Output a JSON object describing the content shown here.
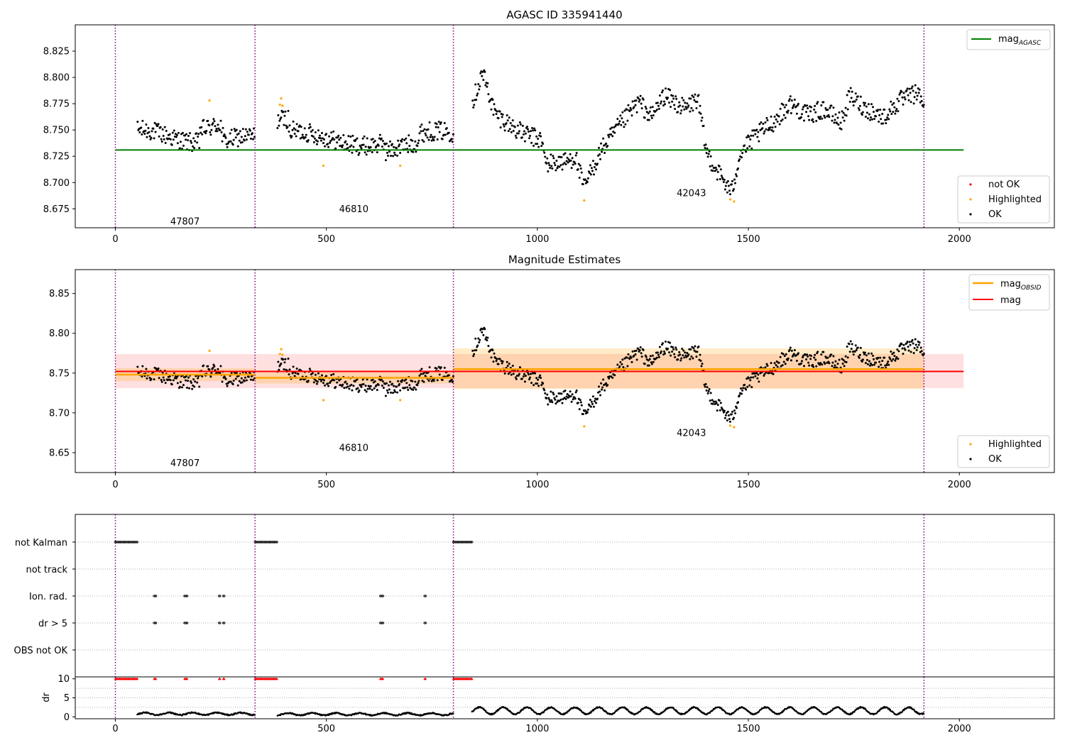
{
  "chart_data": [
    {
      "type": "scatter",
      "title": "AGASC ID 335941440",
      "xlabel": "",
      "ylabel": "",
      "xlim": [
        -95,
        2225
      ],
      "ylim": [
        8.657,
        8.85
      ],
      "xticks": [
        0,
        500,
        1000,
        1500,
        2000
      ],
      "yticks": [
        8.675,
        8.7,
        8.725,
        8.75,
        8.775,
        8.8,
        8.825
      ],
      "ytick_labels": [
        "8.675",
        "8.700",
        "8.725",
        "8.750",
        "8.775",
        "8.800",
        "8.825"
      ],
      "mag_agasc": 8.731,
      "mag_agasc_range": [
        0,
        2010
      ],
      "obsid_boundaries": [
        0,
        331,
        801,
        1916
      ],
      "obsids": [
        {
          "label": "47807",
          "x": 165,
          "y": 8.66
        },
        {
          "label": "46810",
          "x": 565,
          "y": 8.672
        },
        {
          "label": "42043",
          "x": 1365,
          "y": 8.687
        }
      ],
      "series": [
        {
          "name": "mag_AGASC",
          "color": "#008000",
          "type": "line"
        },
        {
          "name": "not OK",
          "color": "#ff0000",
          "type": "scatter"
        },
        {
          "name": "Highlighted",
          "color": "#ffa500",
          "type": "scatter"
        },
        {
          "name": "OK",
          "color": "#000000",
          "type": "scatter"
        }
      ],
      "legend_lines": {
        "main": "mag",
        "sub": "AGASC"
      },
      "legend_points": [
        "not OK",
        "Highlighted",
        "OK"
      ],
      "highlighted_points": [
        [
          223,
          8.778
        ],
        [
          390,
          8.774
        ],
        [
          393,
          8.78
        ],
        [
          396,
          8.773
        ],
        [
          493,
          8.716
        ],
        [
          675,
          8.716
        ],
        [
          1111,
          8.683
        ],
        [
          1457,
          8.684
        ],
        [
          1466,
          8.682
        ]
      ]
    },
    {
      "type": "scatter",
      "title": "Magnitude Estimates",
      "xlabel": "",
      "ylabel": "",
      "xlim": [
        -95,
        2225
      ],
      "ylim": [
        8.625,
        8.88
      ],
      "xticks": [
        0,
        500,
        1000,
        1500,
        2000
      ],
      "yticks": [
        8.65,
        8.7,
        8.75,
        8.8,
        8.85
      ],
      "ytick_labels": [
        "8.65",
        "8.70",
        "8.75",
        "8.80",
        "8.85"
      ],
      "mag": 8.752,
      "mag_band": [
        8.731,
        8.774
      ],
      "mag_range": [
        0,
        2010
      ],
      "mag_obsid": [
        {
          "x0": 0,
          "x1": 331,
          "value": 8.748,
          "band": [
            8.74,
            8.756
          ]
        },
        {
          "x0": 331,
          "x1": 801,
          "value": 8.744,
          "band": [
            8.737,
            8.751
          ]
        },
        {
          "x0": 801,
          "x1": 1916,
          "value": 8.755,
          "band": [
            8.73,
            8.781
          ]
        }
      ],
      "obsid_boundaries": [
        0,
        331,
        801,
        1916
      ],
      "obsids": [
        {
          "label": "47807",
          "x": 165,
          "y": 8.633
        },
        {
          "label": "46810",
          "x": 565,
          "y": 8.652
        },
        {
          "label": "42043",
          "x": 1365,
          "y": 8.671
        }
      ],
      "series": [
        {
          "name": "mag_OBSID",
          "color": "#ffa500",
          "type": "line"
        },
        {
          "name": "mag",
          "color": "#ff0000",
          "type": "line"
        },
        {
          "name": "Highlighted",
          "color": "#ffa500",
          "type": "scatter"
        },
        {
          "name": "OK",
          "color": "#000000",
          "type": "scatter"
        }
      ],
      "legend_lines": [
        {
          "main": "mag",
          "sub": "OBSID"
        },
        {
          "main": "mag",
          "sub": ""
        }
      ],
      "legend_points": [
        "Highlighted",
        "OK"
      ]
    },
    {
      "type": "scatter",
      "title": "",
      "xlabel": "",
      "ylabel": "",
      "xlim": [
        -95,
        2225
      ],
      "flag_labels": [
        "not Kalman",
        "not track",
        "Ion. rad.",
        "dr > 5",
        "OBS not OK"
      ],
      "obsid_boundaries": [
        0,
        331,
        801,
        1916
      ],
      "flag_points": {
        "not Kalman": [
          [
            0,
            52
          ],
          [
            331,
            384
          ],
          [
            801,
            845
          ]
        ],
        "not track": [],
        "Ion. rad.": [
          [
            92,
            97
          ],
          [
            164,
            170
          ],
          [
            246,
            248
          ],
          [
            256,
            258
          ],
          [
            628,
            634
          ],
          [
            733,
            735
          ]
        ],
        "dr > 5": [
          [
            92,
            97
          ],
          [
            164,
            170
          ],
          [
            246,
            248
          ],
          [
            256,
            258
          ],
          [
            628,
            634
          ],
          [
            733,
            735
          ]
        ],
        "OBS not OK": []
      }
    },
    {
      "type": "scatter",
      "title": "",
      "xlabel": "",
      "ylabel": "dr",
      "xlim": [
        -95,
        2225
      ],
      "ylim": [
        -0.5,
        10.5
      ],
      "xticks": [
        0,
        500,
        1000,
        1500,
        2000
      ],
      "yticks": [
        0,
        5,
        10
      ],
      "ytick_labels": [
        "0",
        "5",
        "10"
      ],
      "obsid_boundaries": [
        0,
        331,
        801,
        1916
      ],
      "clipped_value": 10,
      "clipped_ranges": [
        [
          0,
          52
        ],
        [
          92,
          97
        ],
        [
          164,
          170
        ],
        [
          246,
          248
        ],
        [
          256,
          258
        ],
        [
          331,
          384
        ],
        [
          628,
          634
        ],
        [
          733,
          735
        ],
        [
          801,
          845
        ]
      ],
      "dr_level": [
        {
          "x0": 52,
          "x1": 331,
          "mean": 0.8,
          "amp": 0.3
        },
        {
          "x0": 384,
          "x1": 801,
          "mean": 0.7,
          "amp": 0.3
        },
        {
          "x0": 845,
          "x1": 1916,
          "mean": 1.6,
          "amp": 0.9
        }
      ]
    }
  ]
}
